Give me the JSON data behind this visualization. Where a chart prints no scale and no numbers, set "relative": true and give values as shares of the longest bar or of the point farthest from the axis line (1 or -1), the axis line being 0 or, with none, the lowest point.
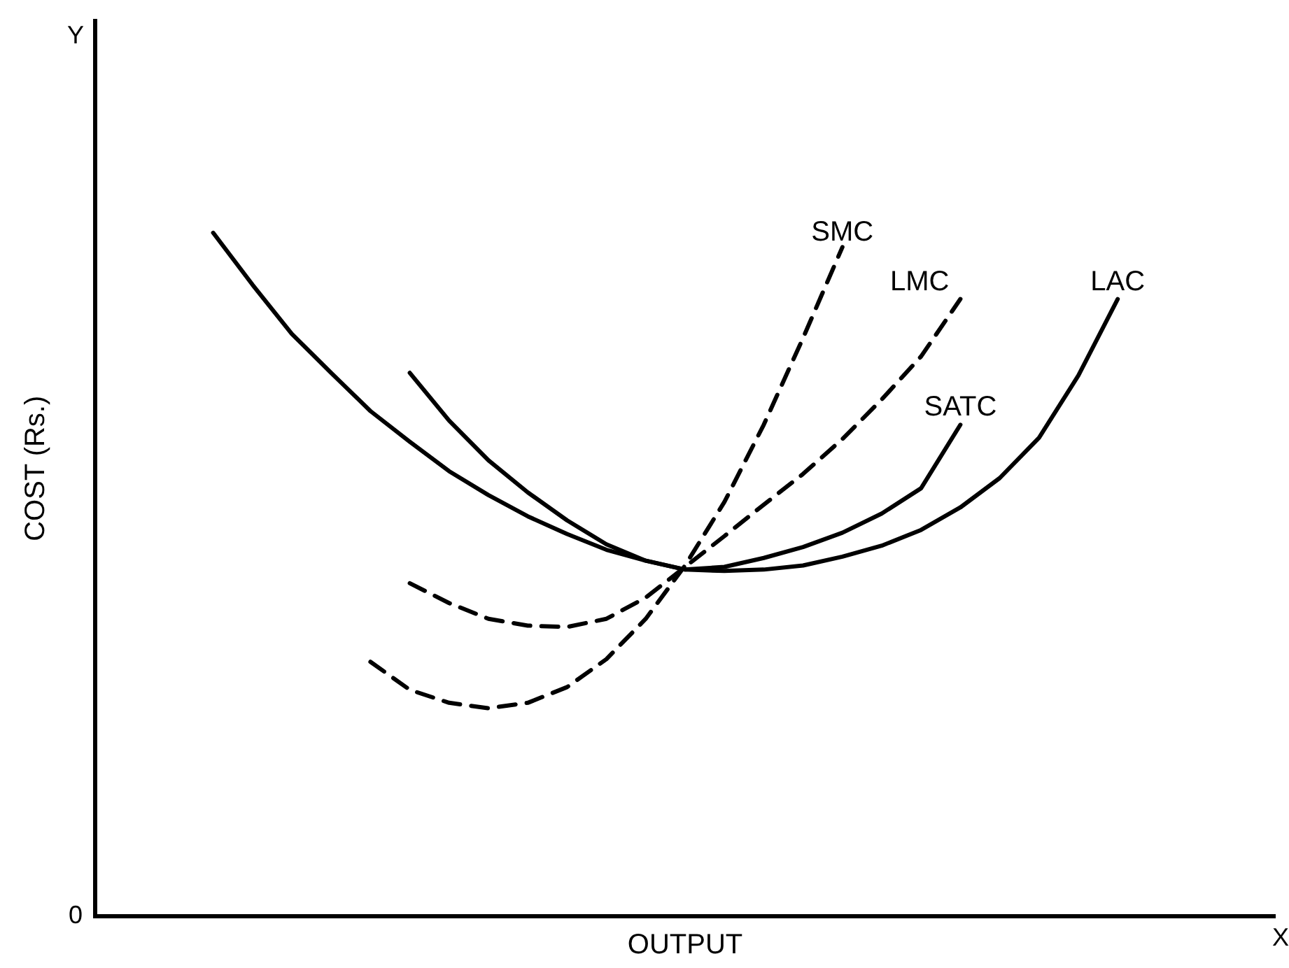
{
  "chart_data": {
    "type": "line",
    "relative": true,
    "xlabel": "OUTPUT",
    "ylabel": "COST (Rs.)",
    "ylim": [
      0,
      1.31
    ],
    "legend": false,
    "marker": "none",
    "annotations": [
      "Y",
      "X",
      "0"
    ],
    "categories": [
      null,
      null,
      null,
      null,
      null,
      null,
      null,
      null,
      null,
      null,
      null,
      null,
      null,
      null,
      null,
      null,
      null,
      null,
      null,
      null,
      null,
      null,
      null,
      null,
      null,
      null,
      null,
      null,
      null,
      null,
      null
    ],
    "series": [
      {
        "name": "LAC",
        "color": "#000000",
        "line_style": "solid",
        "values": [
          null,
          null,
          null,
          1.0,
          0.924,
          0.852,
          0.795,
          0.739,
          0.694,
          0.651,
          0.616,
          0.585,
          0.559,
          0.536,
          0.52,
          0.507,
          0.505,
          0.507,
          0.513,
          0.526,
          0.542,
          0.565,
          0.598,
          0.641,
          0.7,
          0.791,
          0.903,
          null,
          null,
          null,
          null
        ]
      },
      {
        "name": "SATC",
        "color": "#000000",
        "line_style": "solid",
        "values": [
          null,
          null,
          null,
          null,
          null,
          null,
          null,
          null,
          0.795,
          0.725,
          0.667,
          0.62,
          0.579,
          0.544,
          0.52,
          0.507,
          0.511,
          0.524,
          0.54,
          0.561,
          0.589,
          0.626,
          0.719,
          null,
          null,
          null,
          null,
          null,
          null,
          null,
          null
        ]
      },
      {
        "name": "SMC",
        "color": "#000000",
        "line_style": "dashed",
        "values": [
          null,
          null,
          null,
          null,
          null,
          null,
          null,
          0.372,
          0.331,
          0.312,
          0.304,
          0.312,
          0.335,
          0.376,
          0.435,
          0.513,
          0.606,
          0.719,
          0.846,
          0.979,
          null,
          null,
          null,
          null,
          null,
          null,
          null,
          null,
          null,
          null,
          null
        ]
      },
      {
        "name": "LMC",
        "color": "#000000",
        "line_style": "dashed",
        "values": [
          null,
          null,
          null,
          null,
          null,
          null,
          null,
          null,
          0.487,
          0.458,
          0.435,
          0.425,
          0.423,
          0.435,
          0.466,
          0.511,
          0.556,
          0.602,
          0.647,
          0.698,
          0.756,
          0.819,
          0.903,
          null,
          null,
          null,
          null,
          null,
          null,
          null,
          null
        ]
      }
    ]
  }
}
